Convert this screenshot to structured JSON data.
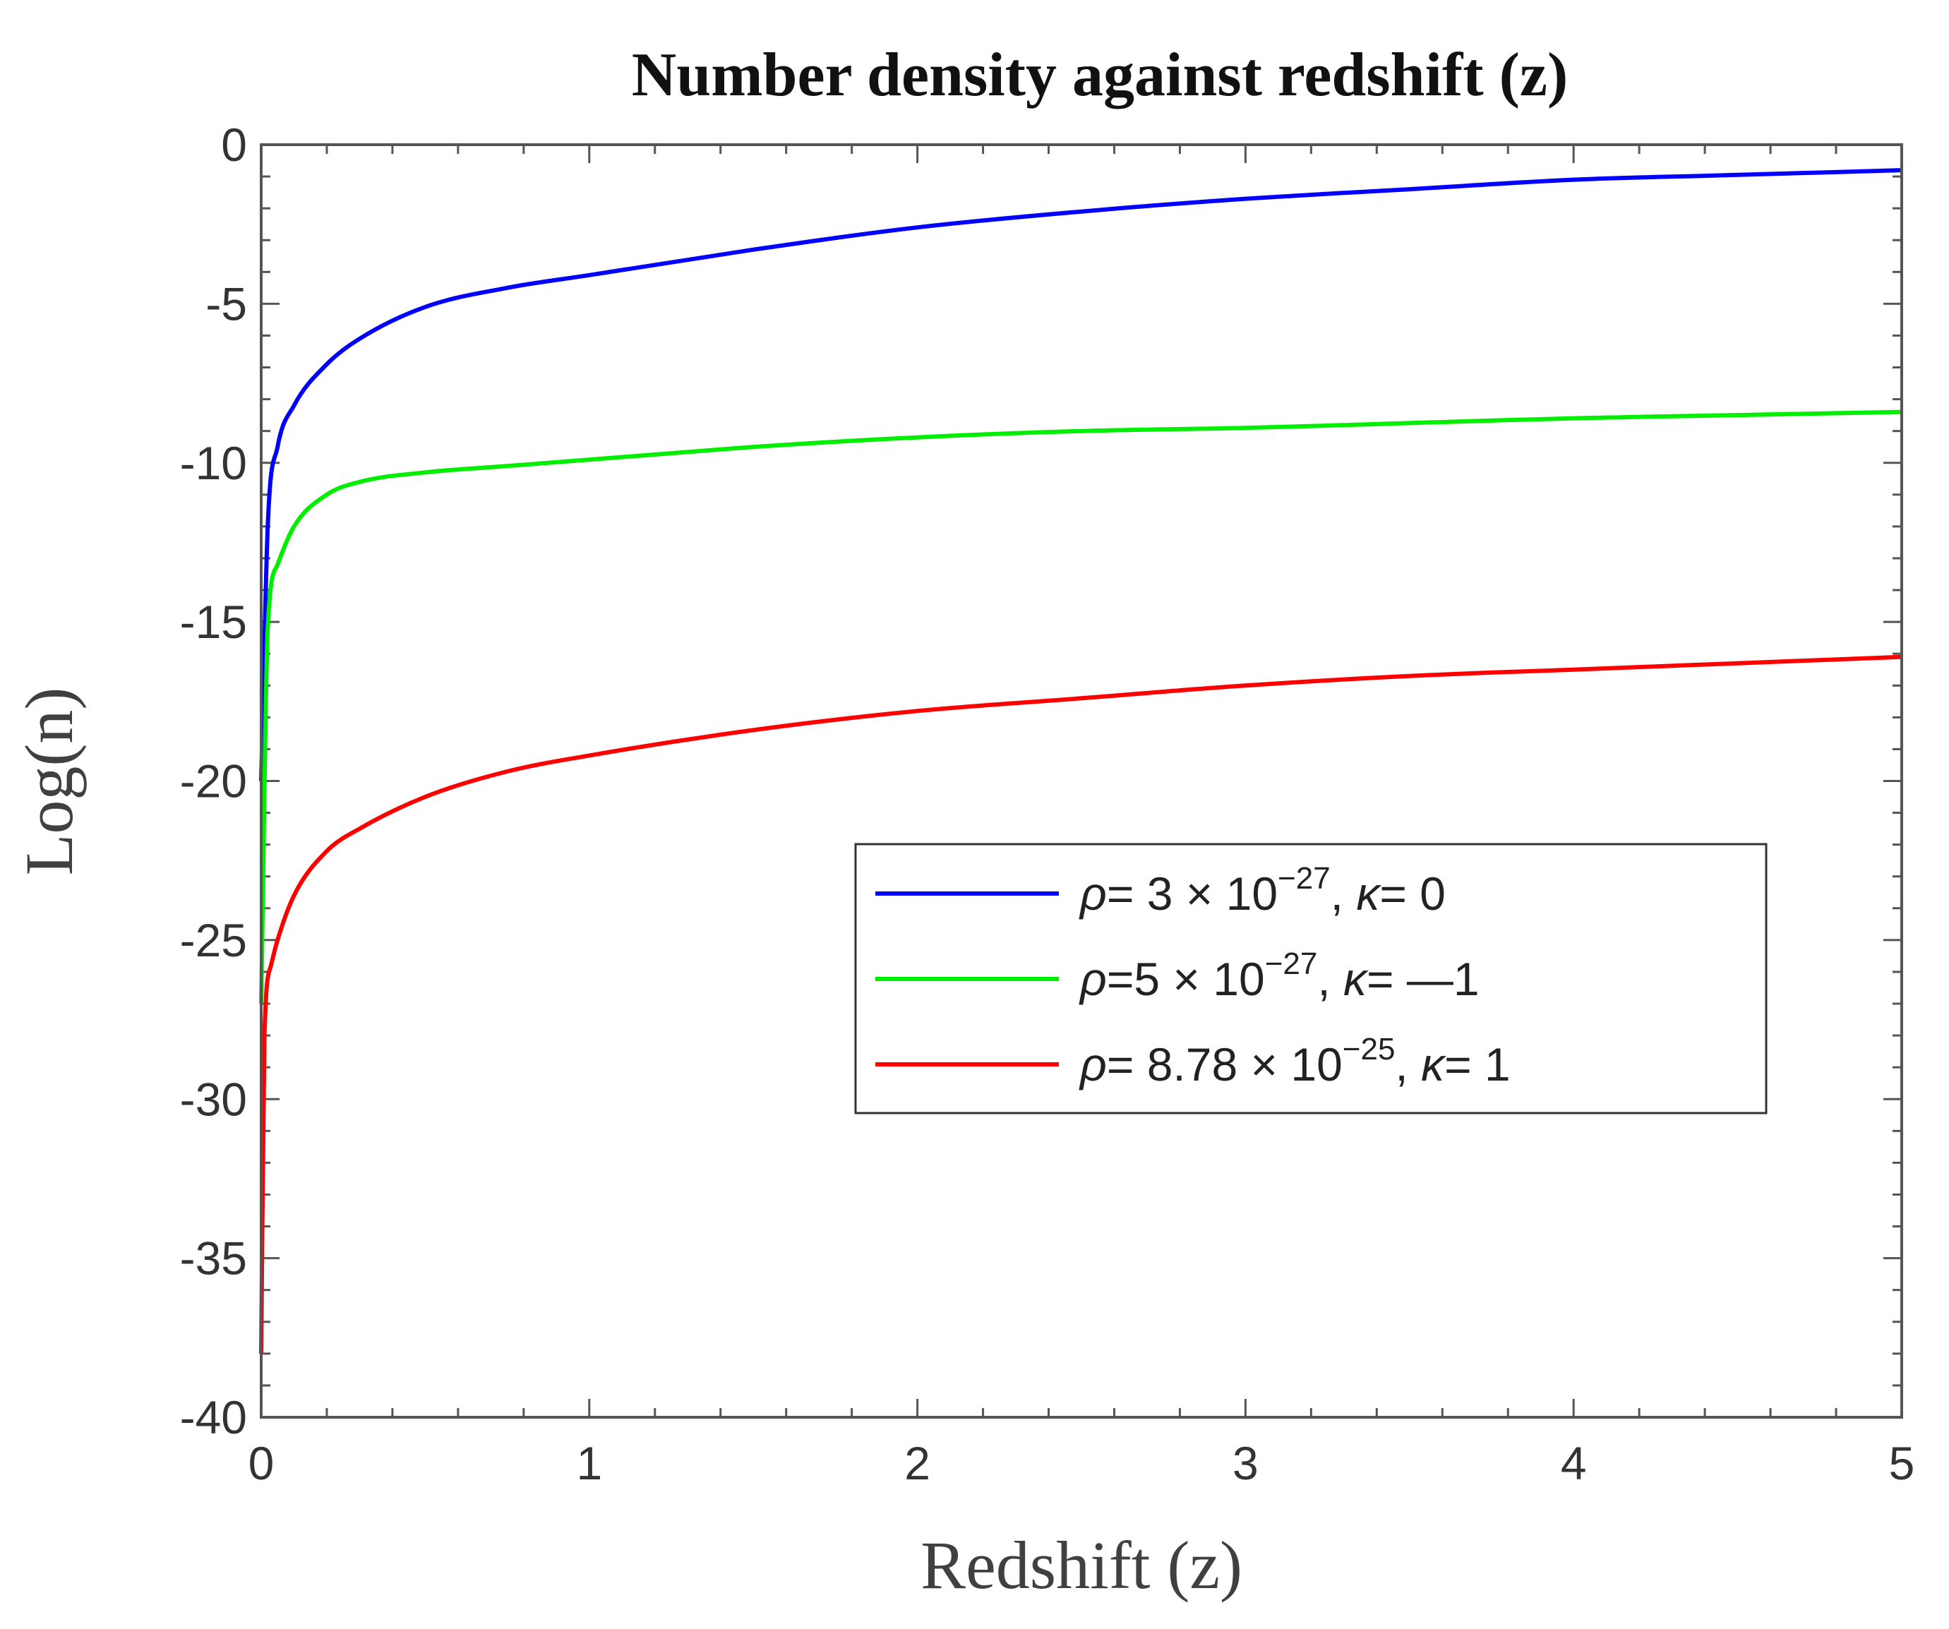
{
  "chart_data": {
    "type": "line",
    "title": "Number density against redshift (z)",
    "xlabel": "Redshift (z)",
    "ylabel": "Log(n)",
    "xlim": [
      0,
      5
    ],
    "ylim": [
      -40,
      0
    ],
    "xticks": [
      0,
      1,
      2,
      3,
      4,
      5
    ],
    "yticks": [
      0,
      -5,
      -10,
      -15,
      -20,
      -25,
      -30,
      -35,
      -40
    ],
    "xtick_labels": [
      "0",
      "1",
      "2",
      "3",
      "4",
      "5"
    ],
    "ytick_labels": [
      "0",
      "-5",
      "-10",
      "-15",
      "-20",
      "-25",
      "-30",
      "-35",
      "-40"
    ],
    "grid": false,
    "legend_position": "center-right",
    "series": [
      {
        "name": "ρ= 3 × 10^−27, κ= 0",
        "legend": {
          "rho_sym": "ρ",
          "rho_prefix": "= 3 × 10",
          "rho_exp": "−27",
          "kappa_sym": "κ",
          "kappa_suffix": "= 0"
        },
        "color": "#0000ff",
        "x": [
          0,
          0.02,
          0.05,
          0.1,
          0.2,
          0.3,
          0.5,
          0.75,
          1,
          1.5,
          2,
          2.5,
          3,
          3.5,
          4,
          4.5,
          5
        ],
        "y": [
          -20,
          -12,
          -9.5,
          -8.2,
          -6.9,
          -6.1,
          -5.1,
          -4.5,
          -4.1,
          -3.3,
          -2.6,
          -2.1,
          -1.7,
          -1.4,
          -1.1,
          -0.95,
          -0.8
        ]
      },
      {
        "name": "ρ=5 × 10^−27, κ= −1",
        "legend": {
          "rho_sym": "ρ",
          "rho_prefix": "=5 × 10",
          "rho_exp": "−27",
          "kappa_sym": "κ",
          "kappa_suffix": "= —1"
        },
        "color": "#00ee00",
        "x": [
          0,
          0.02,
          0.05,
          0.1,
          0.2,
          0.3,
          0.5,
          0.75,
          1,
          1.5,
          2,
          2.5,
          3,
          3.5,
          4,
          4.5,
          5
        ],
        "y": [
          -27,
          -15.2,
          -13.2,
          -12,
          -11,
          -10.6,
          -10.3,
          -10.1,
          -9.9,
          -9.5,
          -9.2,
          -9.0,
          -8.9,
          -8.75,
          -8.6,
          -8.5,
          -8.4
        ]
      },
      {
        "name": "ρ= 8.78 × 10^−25, κ= 1",
        "legend": {
          "rho_sym": "ρ",
          "rho_prefix": "= 8.78 × 10",
          "rho_exp": "−25",
          "kappa_sym": "κ",
          "kappa_suffix": "= 1"
        },
        "color": "#ff0000",
        "x": [
          0,
          0.01,
          0.03,
          0.05,
          0.1,
          0.2,
          0.3,
          0.5,
          0.75,
          1,
          1.5,
          2,
          2.5,
          3,
          3.5,
          4,
          4.5,
          5
        ],
        "y": [
          -38,
          -28,
          -25.8,
          -25,
          -23.6,
          -22.2,
          -21.5,
          -20.5,
          -19.7,
          -19.2,
          -18.4,
          -17.8,
          -17.4,
          -17.0,
          -16.7,
          -16.5,
          -16.3,
          -16.1
        ]
      }
    ]
  }
}
